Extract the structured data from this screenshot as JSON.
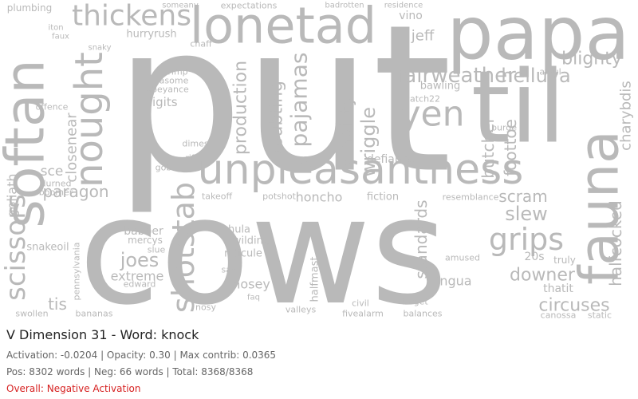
{
  "word_cloud": {
    "words": [
      "put",
      "cows",
      "papa",
      "til",
      "lonetad",
      "unpleasantness",
      "softan",
      "fauna",
      "nought",
      "thickens",
      "yen",
      "fairweather",
      "helluva",
      "blighty",
      "grips",
      "scissors",
      "shotstab",
      "pajamas",
      "doubting",
      "production",
      "liability",
      "wriggle",
      "butcher",
      "foottoe",
      "charybdis",
      "halfcocked",
      "circuses",
      "downer",
      "slew",
      "scram",
      "paragon",
      "closenear",
      "goliath",
      "joes",
      "extreme",
      "babber",
      "jeff",
      "vino",
      "standards",
      "lingua",
      "thatit",
      "20s",
      "truly",
      "nosey",
      "ridicule",
      "wilding",
      "hula",
      "halfmast",
      "honcho",
      "fiction",
      "resemblance",
      "defiance",
      "tis",
      "sce",
      "digits",
      "hurryrush",
      "expectations",
      "plumbing",
      "badrotten",
      "residence",
      "bawling",
      "catch22",
      "fivealarm",
      "balances",
      "canossa",
      "static",
      "swollen",
      "bananas",
      "civil",
      "target",
      "valleys",
      "nosy",
      "sav",
      "faq",
      "potshot",
      "takeoff",
      "rift",
      "gob",
      "crimp",
      "asome",
      "abeyance",
      "dimes",
      "chaff",
      "snaky",
      "faux",
      "iton",
      "offence",
      "boomer",
      "durned",
      "snakeoil",
      "pennsylvania",
      "edward",
      "mercys",
      "slue",
      "amused",
      "afoul",
      "purge",
      "someany"
    ]
  },
  "caption": {
    "title": "V Dimension 31 - Word: knock",
    "stats": "Activation: -0.0204 | Opacity: 0.30 | Max contrib: 0.0365",
    "counts": "Pos: 8302 words | Neg: 66 words | Total: 8368/8368",
    "overall": "Overall: Negative Activation"
  }
}
